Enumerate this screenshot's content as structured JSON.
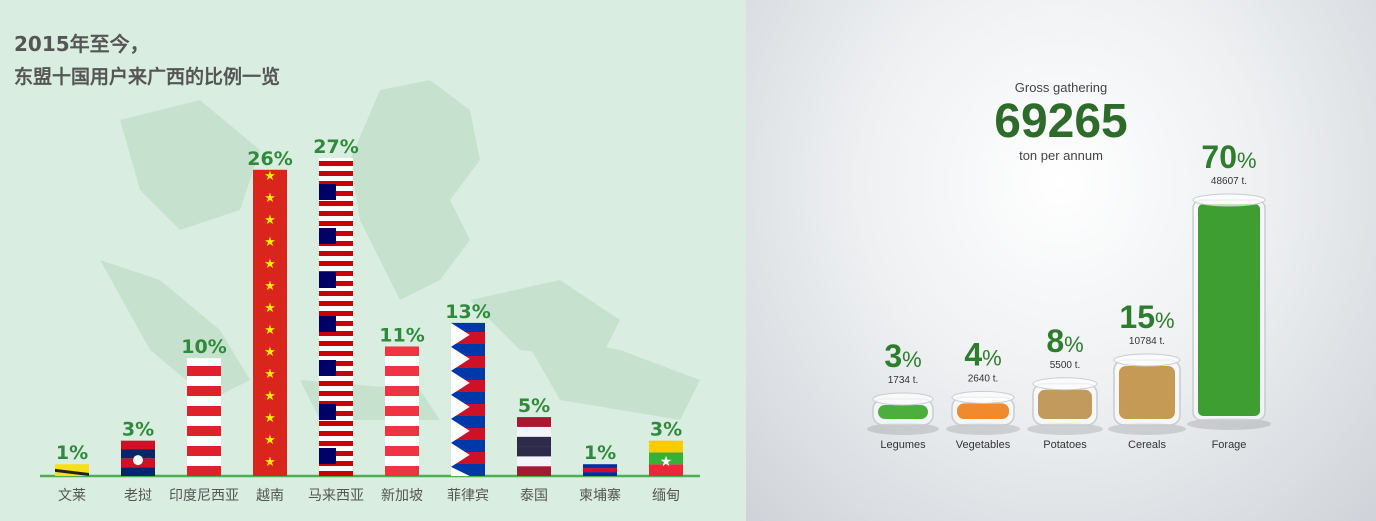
{
  "left": {
    "title_line1": "2015年至今，",
    "title_line2": "东盟十国用户来广西的比例一览",
    "chart_data": {
      "type": "bar",
      "categories": [
        "文莱",
        "老挝",
        "印度尼西亚",
        "越南",
        "马来西亚",
        "新加坡",
        "菲律宾",
        "泰国",
        "柬埔寨",
        "缅甸"
      ],
      "values": [
        1,
        3,
        10,
        26,
        27,
        11,
        13,
        5,
        1,
        3
      ],
      "value_labels": [
        "1%",
        "3%",
        "10%",
        "26%",
        "27%",
        "11%",
        "13%",
        "5%",
        "1%",
        "3%"
      ],
      "unit": "%",
      "ylim": [
        0,
        27
      ],
      "label_color": "#2f8a3a"
    }
  },
  "right": {
    "headline_label": "Gross gathering",
    "headline_value": "69265",
    "headline_unit": "ton per annum",
    "chart_data": {
      "type": "bar",
      "categories": [
        "Legumes",
        "Vegetables",
        "Potatoes",
        "Cereals",
        "Forage"
      ],
      "values": [
        3,
        4,
        8,
        15,
        70
      ],
      "value_labels": [
        "3",
        "4",
        "8",
        "15",
        "70"
      ],
      "unit": "%",
      "tonnage_labels": [
        "1734 t.",
        "2640 t.",
        "5500 t.",
        "10784 t.",
        "48607 t."
      ],
      "accent_color": "#2e7d2e"
    }
  }
}
